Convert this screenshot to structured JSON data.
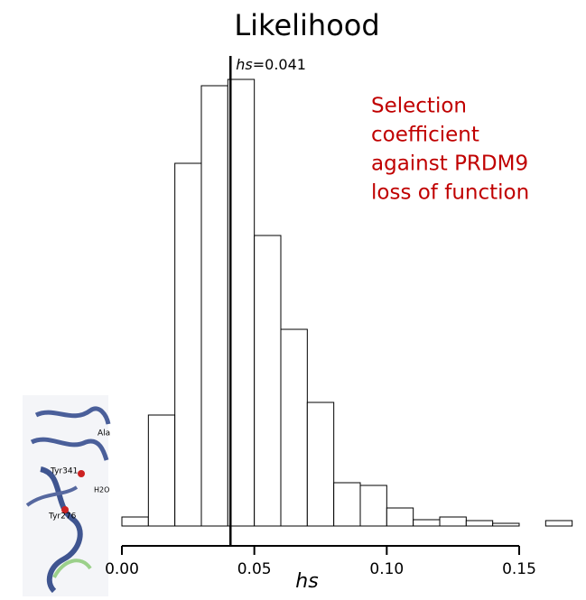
{
  "chart_data": {
    "type": "histogram",
    "title": "Likelihood",
    "x_label": "hs",
    "bins": [
      0,
      0.01,
      0.02,
      0.03,
      0.04,
      0.05,
      0.06,
      0.07,
      0.08,
      0.09,
      0.1,
      0.11,
      0.12,
      0.13,
      0.14,
      0.15,
      0.16,
      0.17
    ],
    "values": [
      10,
      123,
      402,
      488,
      495,
      322,
      218,
      137,
      48,
      45,
      20,
      7,
      10,
      6,
      3,
      0,
      6
    ],
    "color": "#ffffff",
    "edge_color": "#000000",
    "xlim": [
      0,
      0.15
    ],
    "xticks": [
      {
        "value": 0,
        "label": "0.00"
      },
      {
        "value": 0.05,
        "label": "0.05"
      },
      {
        "value": 0.1,
        "label": "0.10"
      },
      {
        "value": 0.15,
        "label": "0.15"
      }
    ],
    "vline": {
      "x": 0.041,
      "label_var": "hs",
      "label_rest": "=0.041"
    },
    "annotation": {
      "lines": [
        "Selection",
        "coefficient",
        "against PRDM9",
        "loss of function"
      ],
      "color": "#c00000"
    }
  },
  "inset_image": {
    "labels": [
      "Ala",
      "Tyr341",
      "H2O",
      "Tyr276"
    ]
  }
}
